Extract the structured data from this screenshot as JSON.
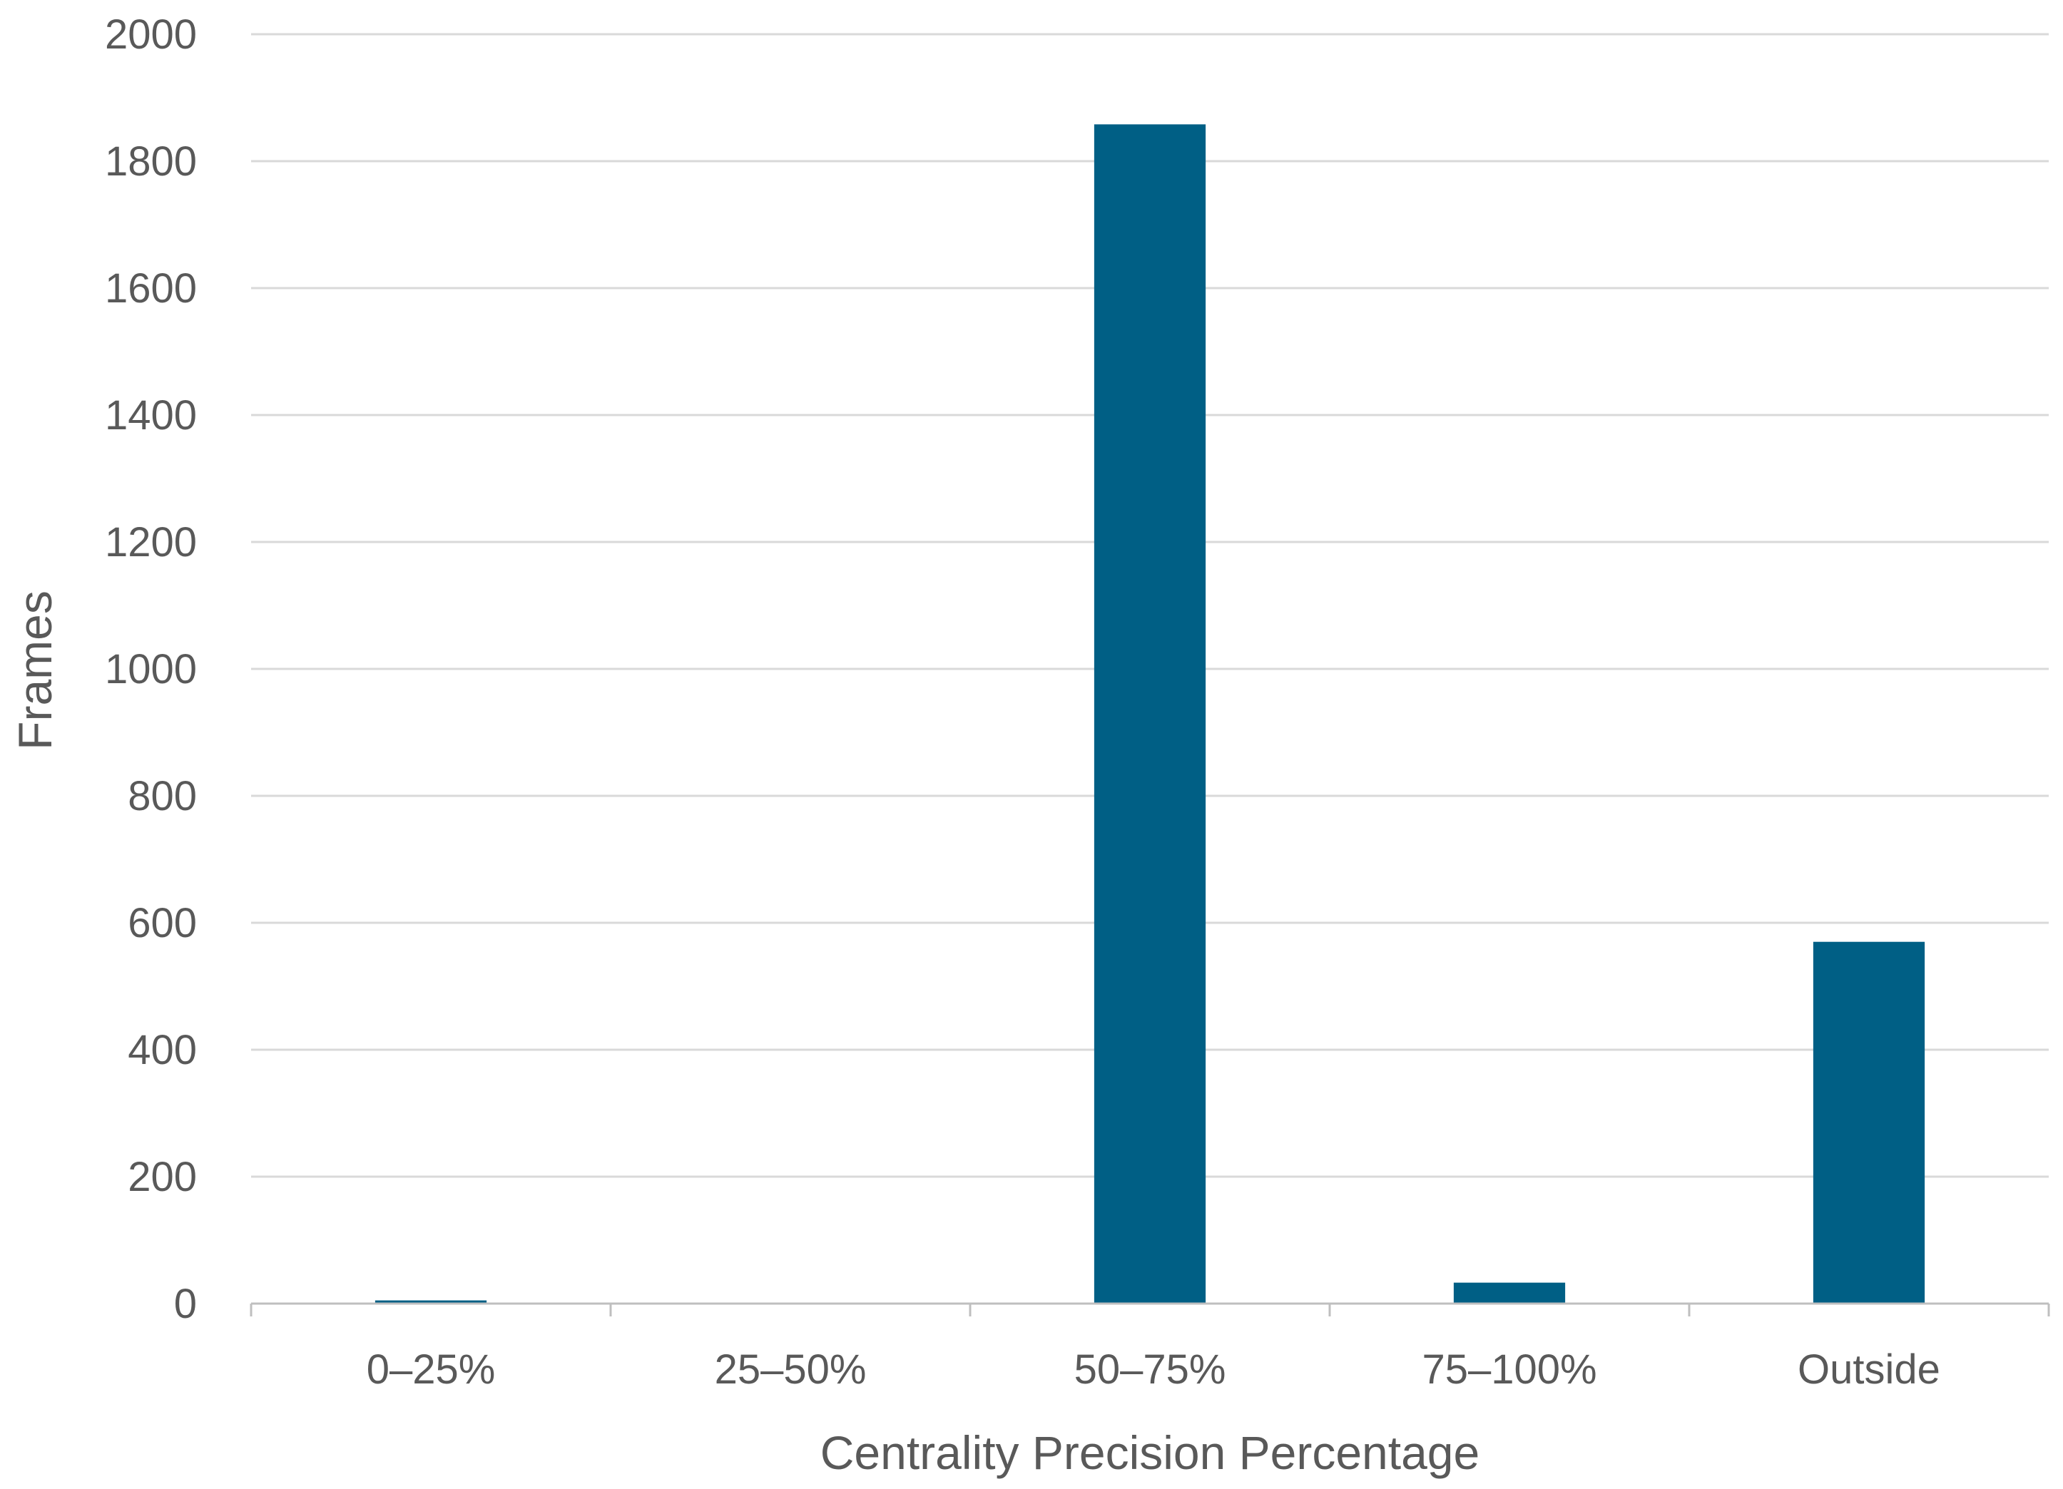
{
  "chart_data": {
    "type": "bar",
    "title": "",
    "xlabel": "Centrality Precision Percentage",
    "ylabel": "Frames",
    "categories": [
      "0–25%",
      "25–50%",
      "50–75%",
      "75–100%",
      "Outside"
    ],
    "values": [
      5,
      0,
      1858,
      33,
      570
    ],
    "ylim": [
      0,
      2000
    ],
    "yticks": [
      0,
      200,
      400,
      600,
      800,
      1000,
      1200,
      1400,
      1600,
      1800,
      2000
    ],
    "grid": true,
    "legend": "none",
    "bar_color": "#005F85"
  }
}
